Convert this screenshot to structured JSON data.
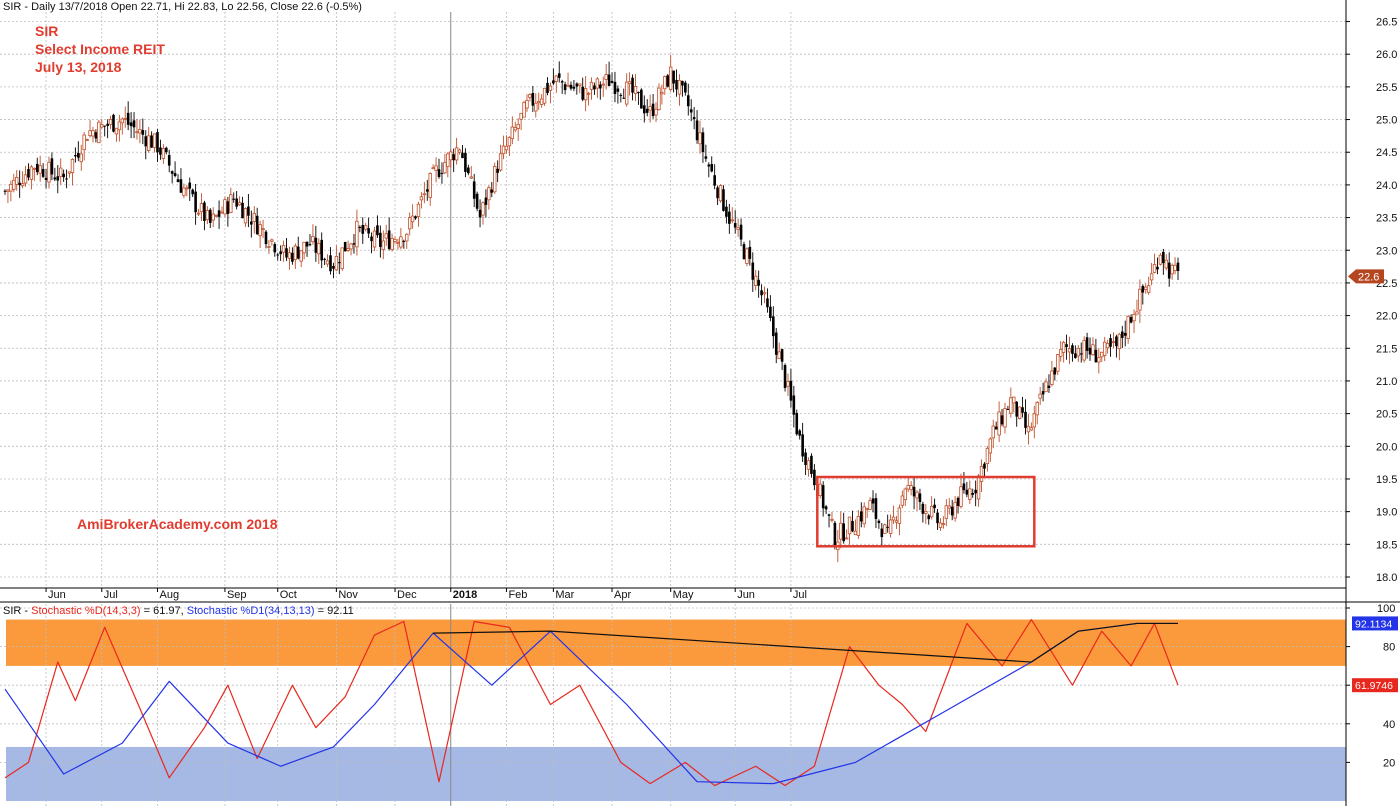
{
  "header": {
    "price_title": "SIR - Daily 13/7/2018 Open 22.71, Hi 22.83, Lo 22.56, Close 22.6 (-0.5%)",
    "ind_prefix": "SIR - ",
    "ind_red_label": "Stochastic %D(14,3,3)",
    "ind_red_value": " = 61.97, ",
    "ind_blue_label": "Stochastic %D1(34,13,13)",
    "ind_blue_value": " = 92.11"
  },
  "annotations": {
    "ticker": "SIR",
    "name": "Select Income REIT",
    "date": "July 13, 2018",
    "watermark": "AmiBrokerAcademy.com  2018"
  },
  "colors": {
    "bull": "#c0502a",
    "bear": "#000000",
    "stoch_red": "#e8281e",
    "stoch_blue": "#2233e8",
    "overbought_band": "#fb9a3c",
    "oversold_band": "#a6b8e4",
    "box": "#e03c2f",
    "grid": "#bdbdbd"
  },
  "chart_data": [
    {
      "type": "candlestick",
      "title": "SIR - Daily 13/7/2018 Open 22.71, Hi 22.83, Lo 22.56, Close 22.6 (-0.5%)",
      "x_labels": [
        "Jun",
        "Jul",
        "Aug",
        "Sep",
        "Oct",
        "Nov",
        "Dec",
        "2018",
        "Feb",
        "Mar",
        "Apr",
        "May",
        "Jun",
        "Jul"
      ],
      "y_ticks": [
        18.0,
        18.5,
        19.0,
        19.5,
        20.0,
        20.5,
        21.0,
        21.5,
        22.0,
        22.5,
        23.0,
        23.5,
        24.0,
        24.5,
        25.0,
        25.5,
        26.0,
        26.5
      ],
      "ylim": [
        17.9,
        26.55
      ],
      "last_close": 22.6,
      "last_close_label": "22.6",
      "grid": true,
      "close_path": [
        [
          0,
          23.9
        ],
        [
          10,
          24.3
        ],
        [
          20,
          24.1
        ],
        [
          28,
          24.8
        ],
        [
          40,
          25.0
        ],
        [
          52,
          24.6
        ],
        [
          60,
          24.0
        ],
        [
          70,
          23.4
        ],
        [
          78,
          23.8
        ],
        [
          88,
          23.3
        ],
        [
          96,
          22.9
        ],
        [
          104,
          23.1
        ],
        [
          112,
          22.8
        ],
        [
          120,
          23.3
        ],
        [
          128,
          23.1
        ],
        [
          137,
          23.3
        ],
        [
          147,
          24.2
        ],
        [
          155,
          24.6
        ],
        [
          162,
          23.5
        ],
        [
          168,
          24.3
        ],
        [
          178,
          25.2
        ],
        [
          188,
          25.6
        ],
        [
          198,
          25.4
        ],
        [
          206,
          25.6
        ],
        [
          214,
          25.4
        ],
        [
          220,
          25.1
        ],
        [
          227,
          25.7
        ],
        [
          233,
          25.2
        ],
        [
          239,
          24.4
        ],
        [
          247,
          23.5
        ],
        [
          253,
          22.9
        ],
        [
          259,
          22.2
        ],
        [
          265,
          21.2
        ],
        [
          271,
          20.1
        ],
        [
          277,
          19.4
        ],
        [
          283,
          18.6
        ],
        [
          289,
          18.8
        ],
        [
          295,
          19.1
        ],
        [
          301,
          18.6
        ],
        [
          307,
          19.4
        ],
        [
          313,
          19.1
        ],
        [
          319,
          18.8
        ],
        [
          325,
          19.2
        ],
        [
          331,
          19.4
        ],
        [
          337,
          20.2
        ],
        [
          343,
          20.7
        ],
        [
          349,
          20.2
        ],
        [
          355,
          20.9
        ],
        [
          361,
          21.5
        ],
        [
          367,
          21.5
        ],
        [
          373,
          21.4
        ],
        [
          379,
          21.5
        ],
        [
          385,
          22.1
        ],
        [
          391,
          22.6
        ],
        [
          394,
          23.0
        ],
        [
          397,
          22.7
        ],
        [
          400,
          22.6
        ]
      ],
      "box": {
        "start_day": 277,
        "end_day": 351,
        "low": 18.47,
        "high": 19.53
      }
    },
    {
      "type": "line",
      "title": "Stochastic %D(14,3,3) / Stochastic %D1(34,13,13)",
      "y_ticks": [
        20,
        40,
        60,
        80,
        100
      ],
      "ylim": [
        0,
        100
      ],
      "bands": [
        {
          "from": 70,
          "to": 94,
          "name": "overbought"
        },
        {
          "from": 0,
          "to": 28,
          "name": "oversold"
        }
      ],
      "series": [
        {
          "name": "Stochastic %D(14,3,3)",
          "last_label": "61.9746",
          "points": [
            [
              0,
              12
            ],
            [
              8,
              20
            ],
            [
              18,
              72
            ],
            [
              24,
              52
            ],
            [
              34,
              90
            ],
            [
              46,
              48
            ],
            [
              56,
              12
            ],
            [
              68,
              38
            ],
            [
              76,
              60
            ],
            [
              86,
              22
            ],
            [
              98,
              60
            ],
            [
              106,
              38
            ],
            [
              116,
              54
            ],
            [
              126,
              86
            ],
            [
              136,
              93
            ],
            [
              148,
              10
            ],
            [
              160,
              93
            ],
            [
              172,
              90
            ],
            [
              186,
              50
            ],
            [
              196,
              60
            ],
            [
              210,
              20
            ],
            [
              220,
              9
            ],
            [
              232,
              20
            ],
            [
              242,
              8
            ],
            [
              256,
              18
            ],
            [
              266,
              8
            ],
            [
              276,
              18
            ],
            [
              288,
              80
            ],
            [
              298,
              60
            ],
            [
              306,
              50
            ],
            [
              314,
              36
            ],
            [
              328,
              92
            ],
            [
              340,
              70
            ],
            [
              350,
              94
            ],
            [
              364,
              60
            ],
            [
              374,
              88
            ],
            [
              384,
              70
            ],
            [
              392,
              92
            ],
            [
              400,
              60
            ]
          ]
        },
        {
          "name": "Stochastic %D1(34,13,13)",
          "last_label": "92.1134",
          "points": [
            [
              0,
              58
            ],
            [
              20,
              14
            ],
            [
              40,
              30
            ],
            [
              56,
              62
            ],
            [
              76,
              30
            ],
            [
              94,
              18
            ],
            [
              112,
              28
            ],
            [
              126,
              50
            ],
            [
              146,
              87
            ],
            [
              166,
              60
            ],
            [
              186,
              88
            ],
            [
              212,
              50
            ],
            [
              236,
              10
            ],
            [
              262,
              9
            ],
            [
              290,
              20
            ],
            [
              320,
              46
            ],
            [
              350,
              72
            ],
            [
              366,
              88
            ],
            [
              386,
              92
            ],
            [
              400,
              92
            ]
          ]
        }
      ]
    }
  ]
}
